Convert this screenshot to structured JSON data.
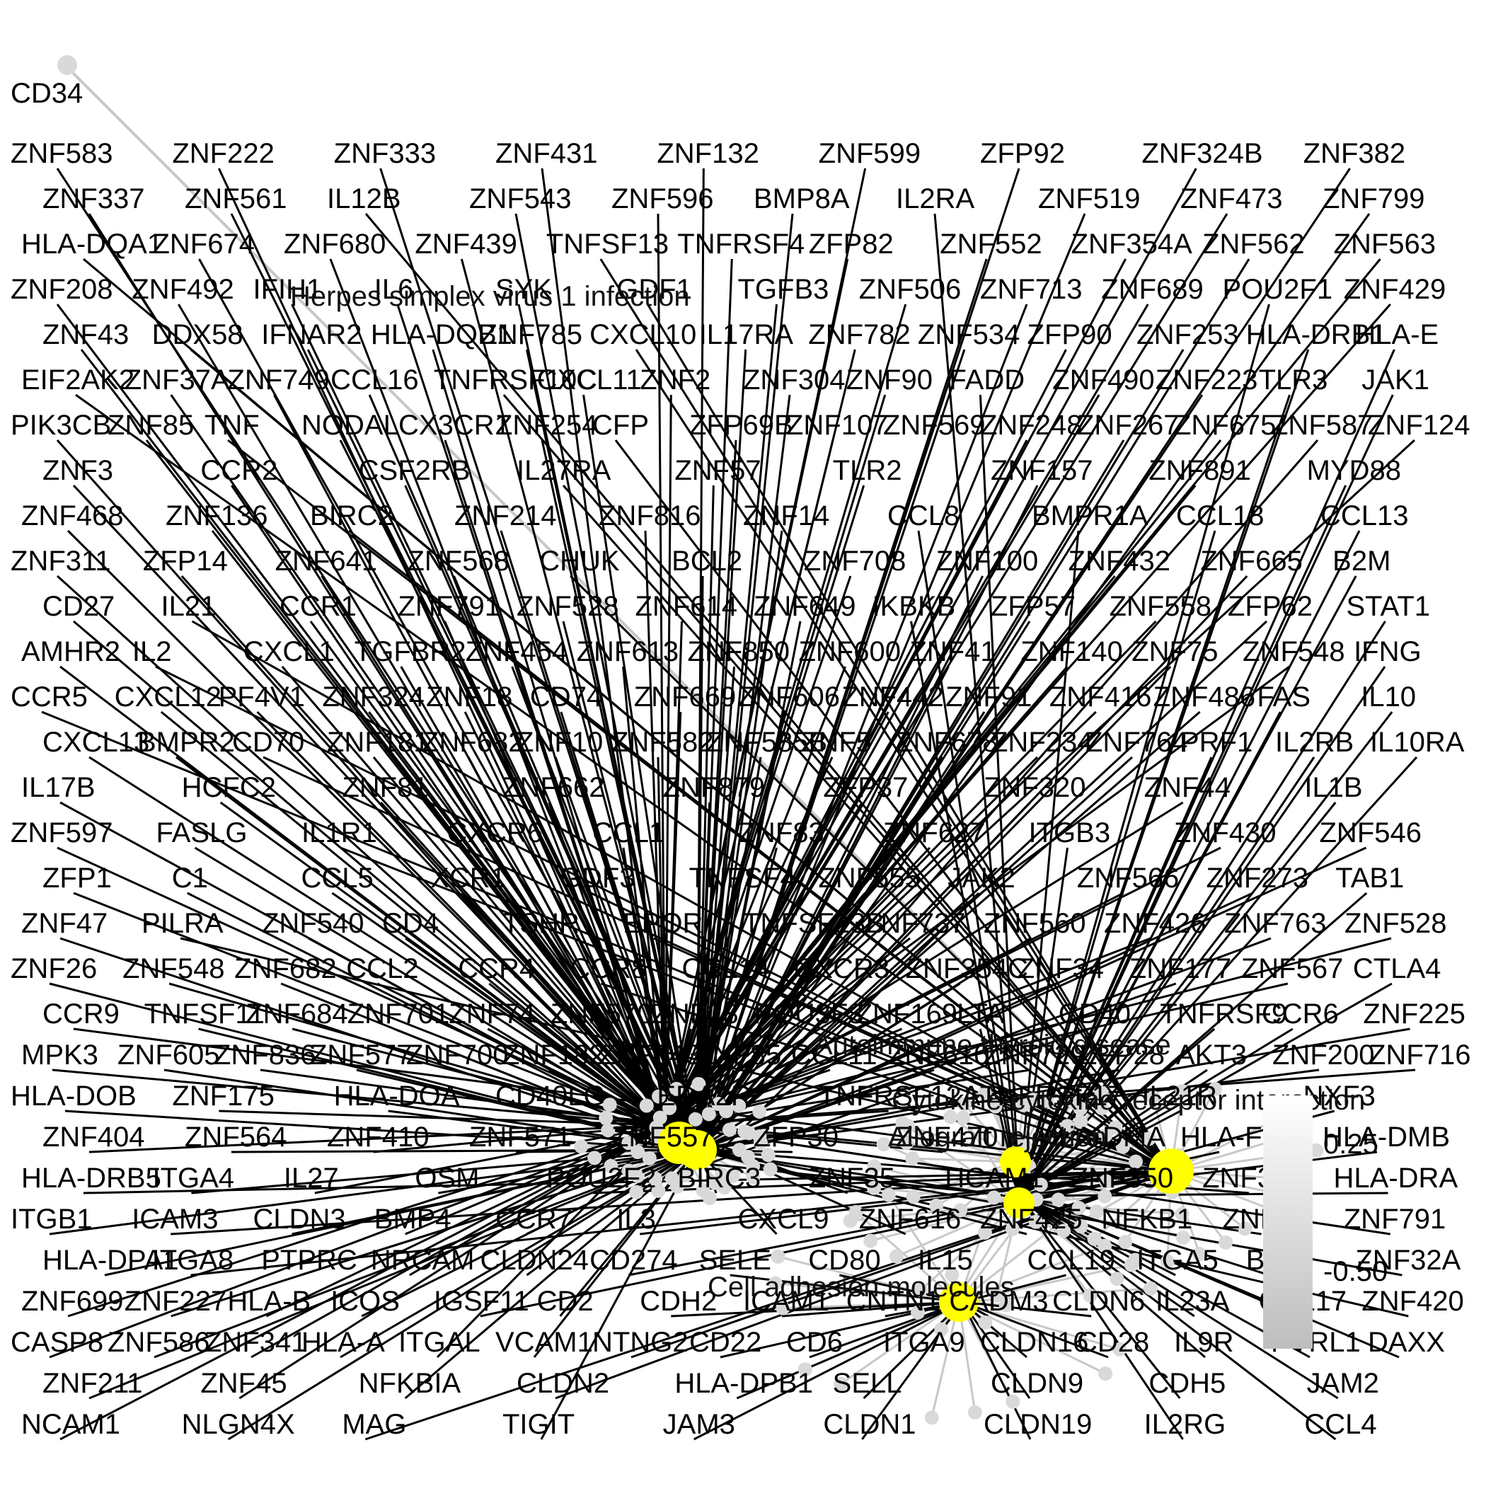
{
  "colors": {
    "edge": "#000000",
    "term_edge": "#c8c8c8",
    "term_node": "#ffff00",
    "gene_node": "#d9d9d9",
    "legend_top": "#ffffff",
    "legend_bottom": "#bdbdbd"
  },
  "pathways": [
    "Herpes simplex virus 1 infection",
    "Autoimmune thyroid disease",
    "Cytokine-cytokine receptor interaction",
    "Allograft rejection",
    "Cell adhesion molecules"
  ],
  "legend": {
    "ticks": [
      "0.25",
      "-0.50"
    ]
  },
  "genes": [
    "CD34",
    "ZNF583",
    "ZNF222",
    "ZNF333",
    "ZNF431",
    "ZNF132",
    "ZNF599",
    "ZFP92",
    "ZNF324B",
    "ZNF382",
    "ZNF337",
    "ZNF561",
    "IL12B",
    "ZNF543",
    "ZNF596",
    "BMP8A",
    "IL2RA",
    "ZNF519",
    "ZNF473",
    "ZNF799",
    "HLA-DQA1",
    "ZNF674",
    "ZNF680",
    "ZNF439",
    "TNFSF13",
    "TNFRSF4",
    "ZFP82",
    "ZNF552",
    "ZNF354A",
    "ZNF562",
    "ZNF563",
    "ZNF208",
    "ZNF492",
    "IFIH1",
    "IL6",
    "SYK",
    "GDF1",
    "TGFB3",
    "ZNF506",
    "ZNF713",
    "ZNF689",
    "POU2F1",
    "ZNF429",
    "ZNF43",
    "DDX58",
    "IFNAR2",
    "HLA-DQB1",
    "ZNF785",
    "CXCL10",
    "IL17RA",
    "ZNF782",
    "ZNF534",
    "ZFP90",
    "ZNF253",
    "HLA-DRB1",
    "HLA-E",
    "EIF2AK2",
    "ZNF37A",
    "ZNF749",
    "CCL16",
    "TNFRSF10C",
    "CXCL11",
    "ZNF2",
    "ZNF304",
    "ZNF90",
    "FADD",
    "ZNF490",
    "ZNF223",
    "TLR3",
    "JAK1",
    "PIK3CB",
    "ZNF85",
    "TNF",
    "NODAL",
    "CX3CR1",
    "ZNF254",
    "CFP",
    "ZFP69B",
    "ZNF107",
    "ZNF569",
    "ZNF248",
    "ZNF267",
    "ZNF675",
    "ZNF587",
    "ZNF124",
    "ZNF3",
    "CCR2",
    "CSF2RB",
    "IL27RA",
    "ZNF57",
    "TLR2",
    "ZNF157",
    "ZNF891",
    "MYD88",
    "ZNF468",
    "ZNF136",
    "BIRC2",
    "ZNF214",
    "ZNF816",
    "ZNF14",
    "CCL8",
    "BMPR1A",
    "CCL18",
    "CCL13",
    "ZNF311",
    "ZFP14",
    "ZNF641",
    "ZNF568",
    "CHUK",
    "BCL2",
    "ZNF708",
    "ZNF100",
    "ZNF432",
    "ZNF665",
    "B2M",
    "CD27",
    "IL21",
    "CCR1",
    "ZNF791",
    "ZNF528",
    "ZNF614",
    "ZNF649",
    "IKBKB",
    "ZFP57",
    "ZNF558",
    "ZFP62",
    "STAT1",
    "AMHR2",
    "IL2",
    "CXCL1",
    "TGFBR2",
    "ZNF454",
    "ZNF613",
    "ZNF850",
    "ZNF600",
    "ZNF41",
    "ZNF140",
    "ZNF75",
    "ZNF548",
    "IFNG",
    "CCR5",
    "CXCL12",
    "PF4V1",
    "ZNF324",
    "ZNF18",
    "CD74",
    "ZNF669",
    "ZNF606",
    "ZNF442",
    "ZNF91",
    "ZNF416",
    "ZNF486",
    "FAS",
    "IL10",
    "CXCL13",
    "BMPR2",
    "CD70",
    "ZNF181",
    "ZNF682",
    "ZNF10",
    "ZNF582",
    "ZNF585B",
    "ZNF5",
    "ZNF678",
    "ZNF234",
    "ZNF764",
    "PRF1",
    "IL2RB",
    "IL10RA",
    "IL17B",
    "HCFC2",
    "ZNF81",
    "ZNF662",
    "ZNF879",
    "ZFP37",
    "ZNF320",
    "ZNF44",
    "IL1B",
    "ZNF597",
    "FASLG",
    "IL1R1",
    "CXCR6",
    "CCL1",
    "ZNF83",
    "ZNF627",
    "ITGB3",
    "ZNF430",
    "ZNF546",
    "ZFP1",
    "C1",
    "CCL5",
    "XCR1",
    "GDF3",
    "TNFSF4",
    "ZNF555",
    "JAK2",
    "ZNF566",
    "ZNF273",
    "TAB1",
    "ZNF47",
    "PILRA",
    "ZNF540",
    "CD4",
    "TSHR",
    "EPOR",
    "TNFSF13B",
    "ZNF737",
    "ZNF560",
    "ZNF426",
    "ZNF763",
    "ZNF528",
    "ZNF26",
    "ZNF548",
    "ZNF682",
    "CCL2",
    "CCR4",
    "CCR8",
    "CCL14",
    "CXCR3",
    "ZNF354C",
    "ZNF34",
    "ZNF177",
    "ZNF567",
    "CTLA4",
    "CCR9",
    "TNFSF11",
    "ZNF684",
    "ZNF701",
    "ZNF74",
    "ZNF570",
    "ZNF28",
    "POU3F3",
    "ZNF169",
    "LTA",
    "CD40",
    "TNFRSF9",
    "CCR6",
    "ZNF225",
    "MPK3",
    "ZNF605",
    "ZNF836",
    "ZNF577",
    "ZNF700",
    "ZNF182",
    "ZNF543",
    "ZNF85",
    "CCL11",
    "ZNF610",
    "ZNF729",
    "ZFP28",
    "AKT3",
    "ZNF200",
    "ZNF716",
    "HLA-DOB",
    "ZNF175",
    "HLA-DOA",
    "CD40LG",
    "EDA2R",
    "TNFRSF12A",
    "TNFRSF17",
    "IL21R",
    "NXF3",
    "ZNF404",
    "ZNF564",
    "ZNF410",
    "ZNF571",
    "ZNF557",
    "ZFP30",
    "ZNF470",
    "HLA-DMA",
    "HLA-F",
    "HLA-DMB",
    "HLA-DRB5",
    "ITGA4",
    "IL27",
    "OSM",
    "POU2F2",
    "BIRC3",
    "ZNF35",
    "TICAM1",
    "ZNF350",
    "ZNF383",
    "HLA-DRA",
    "ITGB1",
    "ICAM3",
    "CLDN3",
    "BMP4",
    "CCR7",
    "IL3",
    "CXCL9",
    "ZNF616",
    "ZNF425",
    "NFKB1",
    "ZNF93",
    "ZNF791",
    "HLA-DPA1",
    "ITGA8",
    "PTPRC",
    "NRCAM",
    "CLDN24",
    "CD274",
    "SELE",
    "CD80",
    "IL15",
    "CCL19",
    "ITGA5",
    "BID",
    "ZNF32A",
    "ZNF699",
    "ZNF227",
    "HLA-B",
    "ICOS",
    "IGSF11",
    "CD2",
    "CDH2",
    "ICAM1",
    "CNTN1",
    "CADM3",
    "CLDN6",
    "IL23A",
    "CCL17",
    "ZNF420",
    "CASP8",
    "ZNF586",
    "ZNF341",
    "HLA-A",
    "ITGAL",
    "VCAM1",
    "NTNG2",
    "CD22",
    "CD6",
    "ITGA9",
    "CLDN16",
    "CD28",
    "IL9R",
    "PVRL1",
    "DAXX",
    "ZNF211",
    "ZNF45",
    "NFKBIA",
    "CLDN2",
    "HLA-DPB1",
    "SELL",
    "CLDN9",
    "CDH5",
    "JAM2",
    "NCAM1",
    "NLGN4X",
    "MAG",
    "TIGIT",
    "JAM3",
    "CLDN1",
    "CLDN19",
    "IL2RG",
    "CCL4"
  ]
}
